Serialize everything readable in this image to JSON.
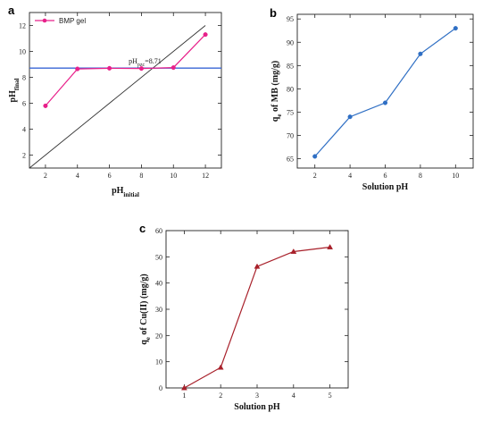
{
  "chart_data": [
    {
      "panel": "a",
      "type": "line",
      "xlim": [
        1,
        13
      ],
      "ylim": [
        1,
        13
      ],
      "xticks": [
        2,
        4,
        6,
        8,
        10,
        12
      ],
      "yticks": [
        2,
        4,
        6,
        8,
        10,
        12
      ],
      "xlabel_main": "pH",
      "xlabel_sub": "initial",
      "ylabel_main": "pH",
      "ylabel_sub": "final",
      "legend": "top-left",
      "series": [
        {
          "name": "BMP gel",
          "color": "#e8208a",
          "x": [
            2,
            4,
            6,
            8,
            10,
            12
          ],
          "y": [
            5.8,
            8.65,
            8.7,
            8.68,
            8.75,
            11.3
          ]
        }
      ],
      "reference_line": {
        "x": [
          1,
          12
        ],
        "y": [
          1,
          12
        ],
        "color": "#333333"
      },
      "hline": {
        "y": 8.71,
        "color": "#3a66d6",
        "label_main": "pH",
        "label_sub": "pzc",
        "label_value": "=8.71"
      }
    },
    {
      "panel": "b",
      "type": "line",
      "xlim": [
        1,
        11
      ],
      "ylim": [
        63,
        96
      ],
      "xticks": [
        2,
        4,
        6,
        8,
        10
      ],
      "yticks": [
        65,
        70,
        75,
        80,
        85,
        90,
        95
      ],
      "xlabel": "Solution pH",
      "ylabel_main": "q",
      "ylabel_sub": "e",
      "ylabel_rest": " of MB (mg/g)",
      "series": [
        {
          "color": "#2f6fc4",
          "x": [
            2,
            4,
            6,
            8,
            10
          ],
          "y": [
            65.5,
            74,
            77,
            87.5,
            93
          ]
        }
      ]
    },
    {
      "panel": "c",
      "type": "line",
      "xlim": [
        0.5,
        5.5
      ],
      "ylim": [
        0,
        60
      ],
      "xticks": [
        1,
        2,
        3,
        4,
        5
      ],
      "yticks": [
        0,
        10,
        20,
        30,
        40,
        50,
        60
      ],
      "xlabel": "Solution pH",
      "ylabel_main": "q",
      "ylabel_sub": "e",
      "ylabel_rest": " of Cu(II) (mg/g)",
      "series": [
        {
          "color": "#a8202a",
          "x": [
            1,
            2,
            3,
            4,
            5
          ],
          "y": [
            0,
            7.8,
            46.3,
            52,
            53.7
          ]
        }
      ]
    }
  ]
}
